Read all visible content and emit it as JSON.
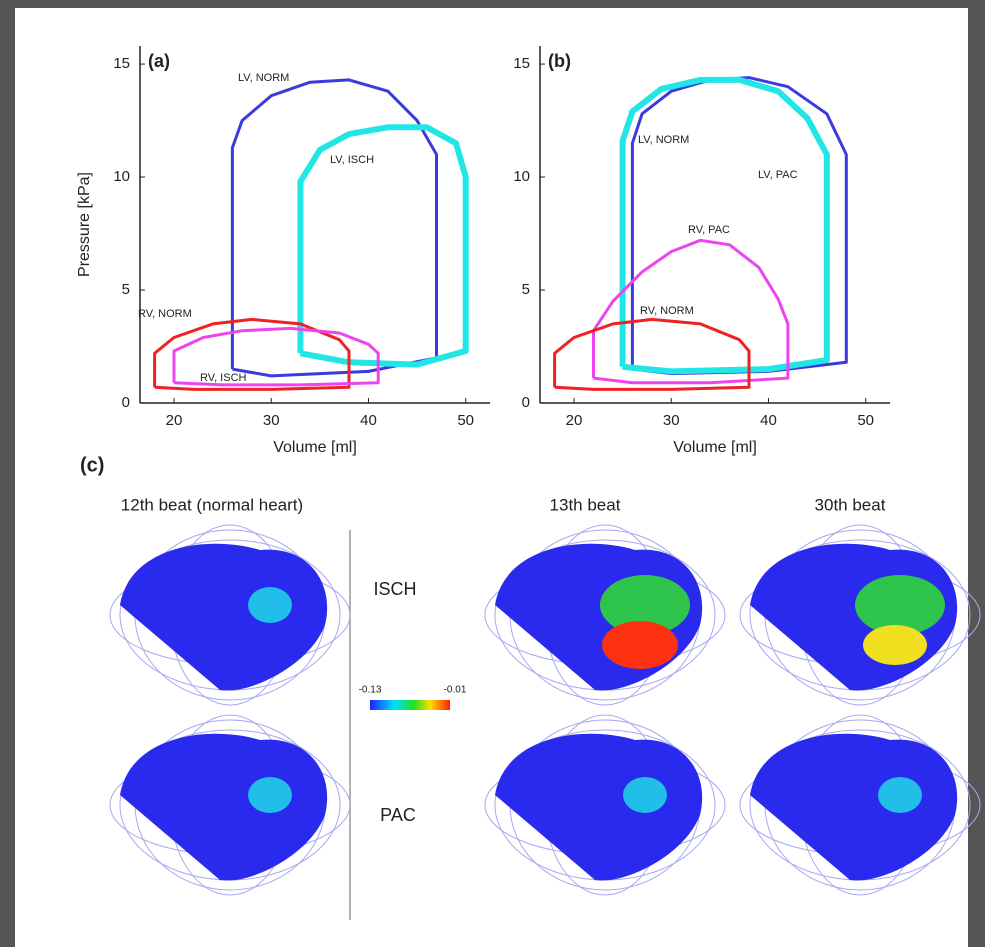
{
  "chart_data": [
    {
      "type": "line",
      "title": "(a)",
      "x_label": "Volume [ml]",
      "y_label": "Pressure [kPa]",
      "xlim": [
        16.5,
        52.5
      ],
      "ylim": [
        0,
        15.8
      ],
      "xticks": [
        20,
        30,
        40,
        50
      ],
      "yticks": [
        0,
        5,
        10,
        15
      ],
      "series": [
        {
          "name": "LV, NORM",
          "color": "#3a3ae0",
          "x": [
            26,
            26,
            27,
            30,
            34,
            38,
            42,
            45,
            47,
            47,
            40,
            30,
            26
          ],
          "values": [
            1.5,
            11.3,
            12.5,
            13.6,
            14.2,
            14.3,
            13.8,
            12.5,
            11,
            2,
            1.4,
            1.2,
            1.5
          ]
        },
        {
          "name": "LV, ISCH",
          "color": "#22e5e5",
          "x": [
            33,
            33,
            35,
            38,
            42,
            46,
            49,
            50,
            50,
            45,
            38,
            33
          ],
          "values": [
            2.2,
            9.8,
            11.2,
            11.9,
            12.2,
            12.2,
            11.5,
            10,
            2.3,
            1.7,
            1.8,
            2.2
          ]
        },
        {
          "name": "RV, NORM",
          "color": "#ee2222",
          "x": [
            18,
            18,
            20,
            24,
            28,
            33,
            37,
            38,
            38,
            30,
            22,
            18
          ],
          "values": [
            0.7,
            2.2,
            2.9,
            3.5,
            3.7,
            3.5,
            2.8,
            2.3,
            0.7,
            0.6,
            0.6,
            0.7
          ]
        },
        {
          "name": "RV, ISCH",
          "color": "#ee44ee",
          "x": [
            20,
            20,
            23,
            27,
            32,
            37,
            40,
            41,
            41,
            33,
            25,
            20
          ],
          "values": [
            0.9,
            2.3,
            2.9,
            3.2,
            3.3,
            3.1,
            2.6,
            2.2,
            0.9,
            0.8,
            0.8,
            0.9
          ]
        }
      ]
    },
    {
      "type": "line",
      "title": "(b)",
      "x_label": "Volume [ml]",
      "xlim": [
        16.5,
        52.5
      ],
      "ylim": [
        0,
        15.8
      ],
      "xticks": [
        20,
        30,
        40,
        50
      ],
      "yticks": [
        0,
        5,
        10,
        15
      ],
      "series": [
        {
          "name": "LV, NORM",
          "color": "#3a3ae0",
          "x": [
            26,
            26,
            27,
            30,
            34,
            38,
            42,
            46,
            48,
            48,
            40,
            30,
            26
          ],
          "values": [
            1.5,
            11.5,
            12.8,
            13.8,
            14.3,
            14.4,
            14,
            12.8,
            11,
            1.8,
            1.4,
            1.3,
            1.5
          ]
        },
        {
          "name": "LV, PAC",
          "color": "#22e5e5",
          "x": [
            25,
            25,
            26,
            29,
            33,
            37,
            41,
            44,
            46,
            46,
            40,
            30,
            25
          ],
          "values": [
            1.6,
            11.6,
            12.9,
            13.9,
            14.3,
            14.3,
            13.8,
            12.6,
            11,
            1.9,
            1.5,
            1.4,
            1.6
          ]
        },
        {
          "name": "RV, PAC",
          "color": "#ee44ee",
          "x": [
            22,
            22,
            24,
            27,
            30,
            33,
            36,
            39,
            41,
            42,
            42,
            34,
            26,
            22
          ],
          "values": [
            1.1,
            3.2,
            4.5,
            5.8,
            6.7,
            7.2,
            7,
            6,
            4.6,
            3.5,
            1.1,
            0.9,
            0.9,
            1.1
          ]
        },
        {
          "name": "RV, NORM",
          "color": "#ee2222",
          "x": [
            18,
            18,
            20,
            24,
            28,
            33,
            37,
            38,
            38,
            30,
            22,
            18
          ],
          "values": [
            0.7,
            2.2,
            2.9,
            3.5,
            3.7,
            3.5,
            2.8,
            2.3,
            0.7,
            0.6,
            0.6,
            0.7
          ]
        }
      ]
    }
  ],
  "panel_c": {
    "label": "(c)",
    "columns": [
      "12th beat (normal heart)",
      "13th beat",
      "30th beat"
    ],
    "rows": [
      "ISCH",
      "PAC"
    ],
    "colorbar": {
      "min_label": "-0.13",
      "max_label": "-0.01"
    }
  }
}
